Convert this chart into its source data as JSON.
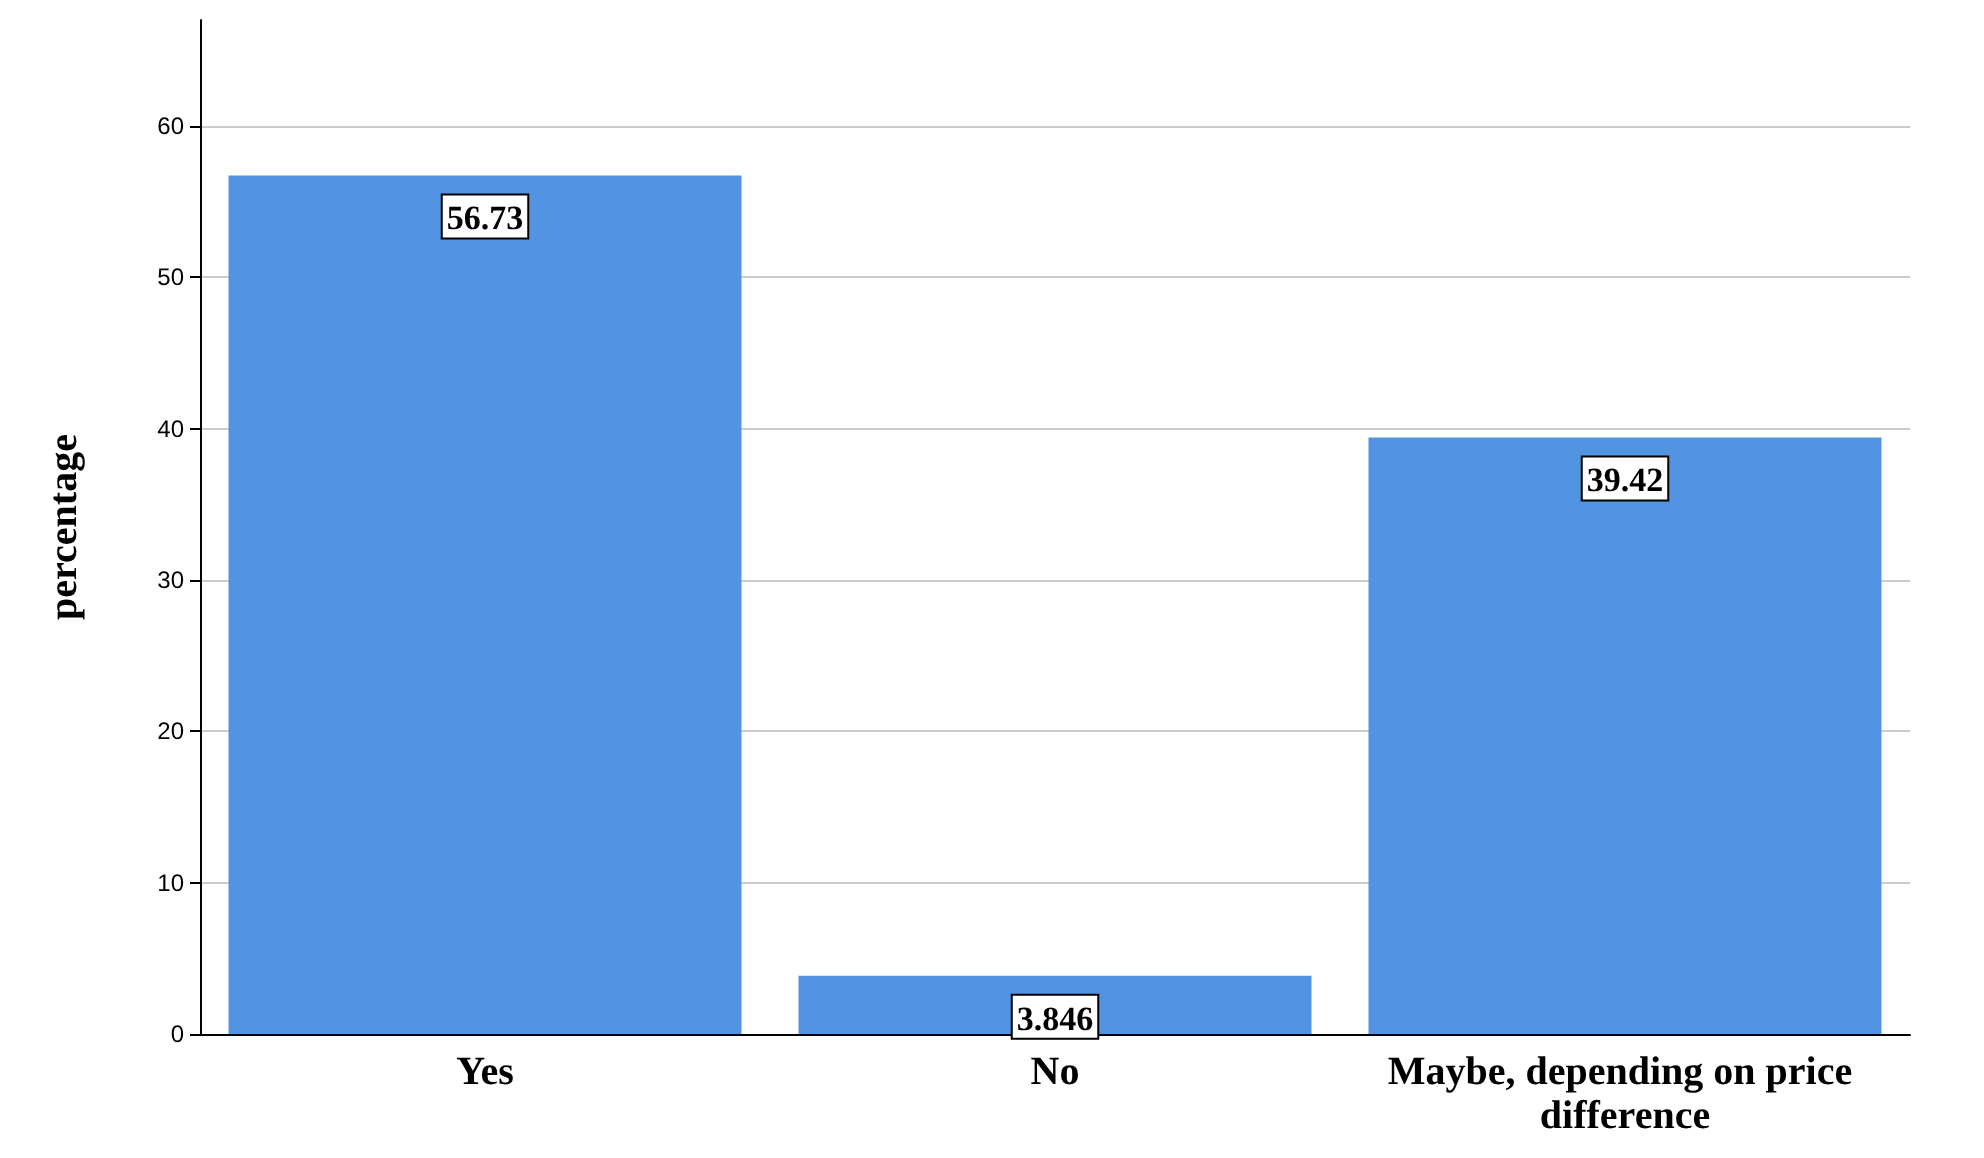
{
  "chart_data": {
    "type": "bar",
    "ylabel": "percentage",
    "categories": [
      "Yes",
      "No",
      "Maybe, depending on price difference"
    ],
    "values": [
      56.73,
      3.846,
      39.42
    ],
    "color": "#5294e2",
    "data_labels": true,
    "ylim": [
      0,
      67
    ],
    "yticks": [
      0,
      10,
      20,
      30,
      40,
      50,
      60
    ],
    "grid": "y"
  }
}
